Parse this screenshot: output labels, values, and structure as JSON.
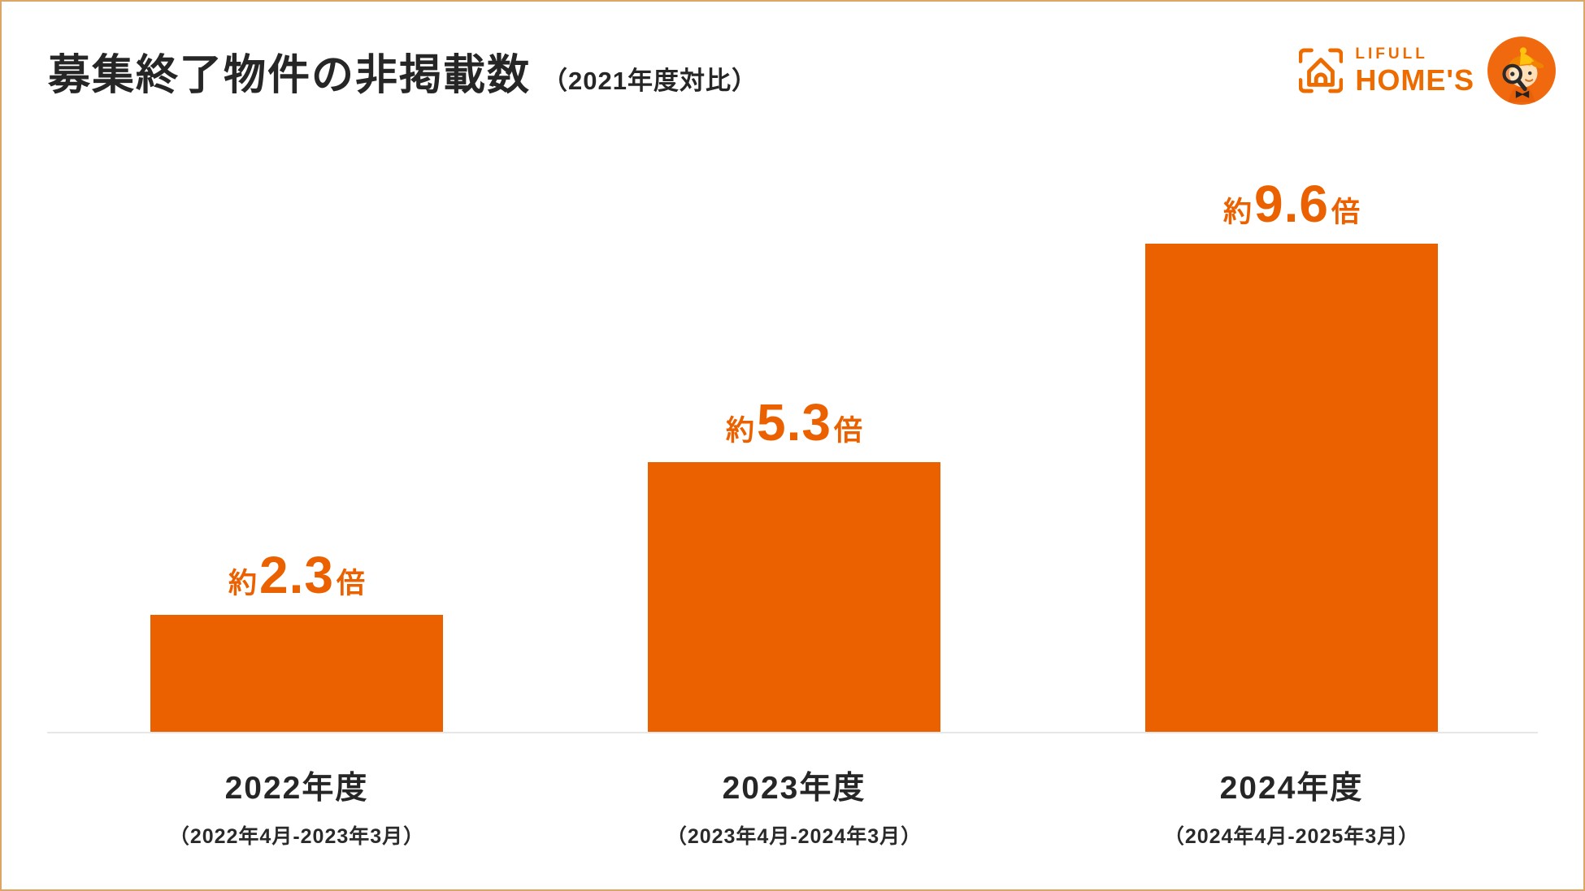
{
  "page": {
    "background": "#FFFFFF",
    "border_color": "#DCA666"
  },
  "header": {
    "title": "募集終了物件の非掲載数",
    "title_note": "（2021年度対比）",
    "logo": {
      "brand_top": "LIFULL",
      "brand_bottom": "HOME'S",
      "brand_color": "#ED6C00",
      "house_icon": "house-in-frame",
      "mascot_icon": "homes-kun-with-magnifying-glass"
    }
  },
  "chart_data": {
    "type": "bar",
    "title": "募集終了物件の非掲載数（2021年度対比）",
    "categories": [
      "2022年度",
      "2023年度",
      "2024年度"
    ],
    "periods": [
      "（2022年4月-2023年3月）",
      "（2023年4月-2024年3月）",
      "（2024年4月-2025年3月）"
    ],
    "values": [
      2.3,
      5.3,
      9.6
    ],
    "value_display": [
      "2.3",
      "5.3",
      "9.6"
    ],
    "value_prefix": "約",
    "value_suffix": "倍",
    "xlabel": "",
    "ylabel": "",
    "ylim": [
      0,
      10.5
    ],
    "grid": false,
    "legend": false,
    "bar_color": "#EB6100",
    "value_label_color": "#EB6100",
    "baseline_color": "#E7E7E7"
  }
}
